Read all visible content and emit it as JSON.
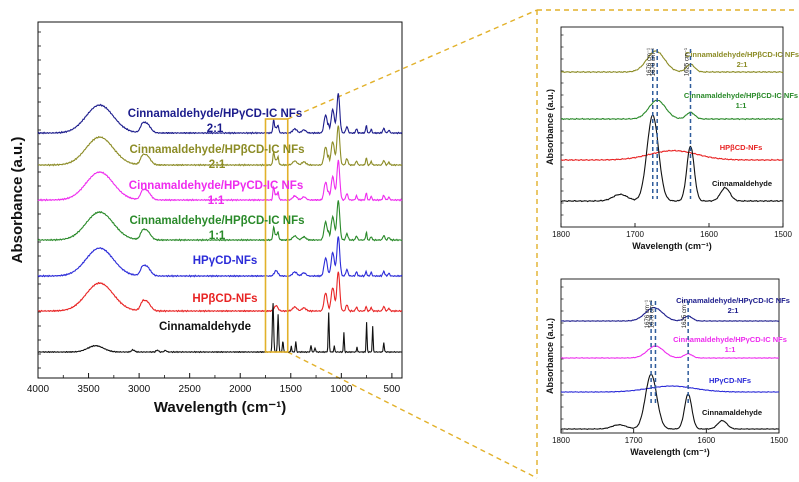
{
  "colors": {
    "navy": "#1c1c8c",
    "olive": "#8c8c26",
    "magenta": "#ee2cee",
    "green": "#2a8a2a",
    "blue": "#2b2bd8",
    "red": "#e82424",
    "black": "#111111",
    "highlight": "#e2b12a",
    "guide": "#2f5c9c"
  },
  "chart_data": [
    {
      "type": "line",
      "title": "",
      "xlabel": "Wavelength (cm⁻¹)",
      "ylabel": "Absorbance (a.u.)",
      "xlim": [
        4000,
        400
      ],
      "x_reversed": true,
      "x_ticks": [
        "4000",
        "3500",
        "3000",
        "2500",
        "2000",
        "1500",
        "1000",
        "500"
      ],
      "y_ticks_labeled": false,
      "highlight_region": [
        1750,
        1530
      ],
      "series": [
        {
          "name": "Cinnamaldehyde/HPγCD-IC NFs",
          "name2": "2:1",
          "color_key": "navy",
          "kind": "cd",
          "offset": 6
        },
        {
          "name": "Cinnamaldehyde/HPβCD-IC NFs",
          "name2": "2:1",
          "color_key": "olive",
          "kind": "cd",
          "offset": 5
        },
        {
          "name": "Cinnamaldehyde/HPγCD-IC NFs",
          "name2": "1:1",
          "color_key": "magenta",
          "kind": "cd",
          "offset": 4
        },
        {
          "name": "Cinnamaldehyde/HPβCD-IC NFs",
          "name2": "1:1",
          "color_key": "green",
          "kind": "cd",
          "offset": 3
        },
        {
          "name": "HPγCD-NFs",
          "name2": "",
          "color_key": "blue",
          "kind": "cd",
          "offset": 2
        },
        {
          "name": "HPβCD-NFs",
          "name2": "",
          "color_key": "red",
          "kind": "cd",
          "offset": 1
        },
        {
          "name": "Cinnamaldehyde",
          "name2": "",
          "color_key": "black",
          "kind": "cin",
          "offset": 0
        }
      ]
    },
    {
      "type": "line",
      "title": "",
      "xlabel": "Wavelength (cm⁻¹)",
      "ylabel": "Absorbance (a.u.)",
      "xlim": [
        1800,
        1500
      ],
      "x_reversed": true,
      "x_ticks": [
        "1800",
        "1700",
        "1600",
        "1500"
      ],
      "annotations": [
        {
          "x": 1676,
          "label": "1676 cm⁻¹"
        },
        {
          "x": 1670,
          "label": "1670 cm⁻¹"
        },
        {
          "x": 1625,
          "label": "1625 cm⁻¹"
        }
      ],
      "series": [
        {
          "name": "Cinnamaldehyde/HPβCD-IC NFs",
          "name2": "2:1",
          "color_key": "olive",
          "kind": "zic21",
          "offset": 3
        },
        {
          "name": "Cinnamaldehyde/HPβCD-IC NFs",
          "name2": "1:1",
          "color_key": "green",
          "kind": "zic11",
          "offset": 2
        },
        {
          "name": "HPβCD-NFs",
          "name2": "",
          "color_key": "red",
          "kind": "zcd",
          "offset": 1
        },
        {
          "name": "Cinnamaldehyde",
          "name2": "",
          "color_key": "black",
          "kind": "zcin",
          "offset": 0
        }
      ]
    },
    {
      "type": "line",
      "title": "",
      "xlabel": "Wavelength (cm⁻¹)",
      "ylabel": "Absorbance (a.u.)",
      "xlim": [
        1800,
        1500
      ],
      "x_reversed": true,
      "x_ticks": [
        "1800",
        "1700",
        "1600",
        "1500"
      ],
      "annotations": [
        {
          "x": 1676,
          "label": "1676 cm⁻¹"
        },
        {
          "x": 1670,
          "label": "1670 cm⁻¹"
        },
        {
          "x": 1625,
          "label": "1625 cm⁻¹"
        }
      ],
      "series": [
        {
          "name": "Cinnamaldehyde/HPγCD-IC NFs",
          "name2": "2:1",
          "color_key": "navy",
          "kind": "zic21",
          "offset": 3
        },
        {
          "name": "Cinnamaldehyde/HPγCD-IC NFs",
          "name2": "1:1",
          "color_key": "magenta",
          "kind": "zic11",
          "offset": 2
        },
        {
          "name": "HPγCD-NFs",
          "name2": "",
          "color_key": "blue",
          "kind": "zcd",
          "offset": 1
        },
        {
          "name": "Cinnamaldehyde",
          "name2": "",
          "color_key": "black",
          "kind": "zcin",
          "offset": 0
        }
      ]
    }
  ]
}
